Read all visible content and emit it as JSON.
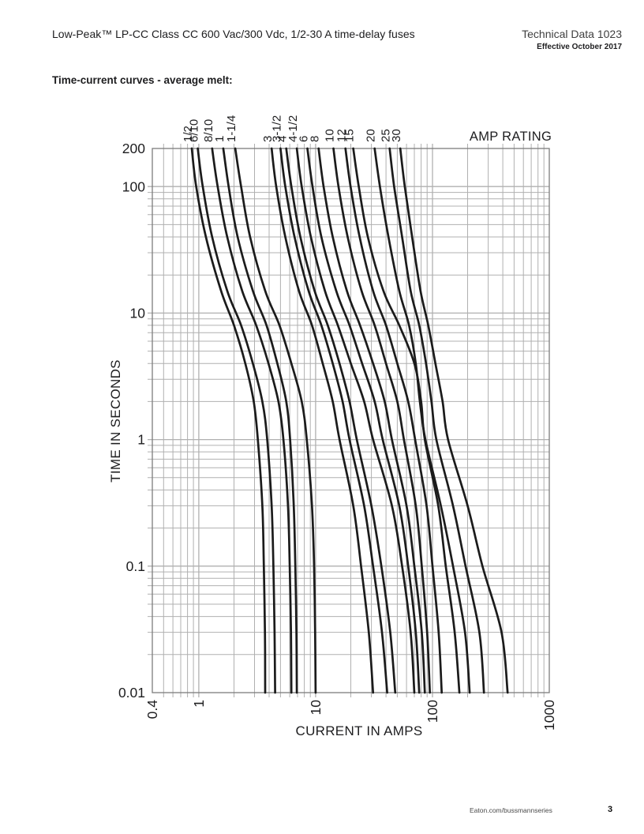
{
  "page": {
    "header": {
      "product_title": "Low-Peak™ LP-CC Class CC 600 Vac/300 Vdc, 1/2-30 A time-delay fuses",
      "doc_title": "Technical Data 1023",
      "effective_date": "Effective October 2017"
    },
    "section_title": "Time-current curves - average melt:",
    "footer": {
      "url": "Eaton.com/bussmannseries",
      "page_number": "3"
    }
  },
  "chart_data": {
    "type": "line",
    "title": "Time-current curves - average melt",
    "xlabel": "CURRENT IN AMPS",
    "ylabel": "TIME IN SECONDS",
    "legend_title": "AMP RATING",
    "x_scale": "log",
    "y_scale": "log",
    "xlim": [
      0.4,
      1000
    ],
    "ylim": [
      0.01,
      200
    ],
    "x_tick_values": [
      0.4,
      1,
      10,
      100,
      1000
    ],
    "x_tick_labels": [
      "0.4",
      "1",
      "10",
      "100",
      "1000"
    ],
    "y_tick_values": [
      200,
      100,
      10,
      1,
      0.1,
      0.01
    ],
    "y_tick_labels": [
      "200",
      "100",
      "10",
      "1",
      "0.1",
      "0.01"
    ],
    "grid": true,
    "legend_position": "top",
    "curve_color": "#1b1b1b",
    "grid_color": "#b0b0b0",
    "series": [
      {
        "label": "1/2",
        "points": [
          [
            0.87,
            200
          ],
          [
            0.95,
            100
          ],
          [
            1.15,
            40
          ],
          [
            1.55,
            15
          ],
          [
            2.0,
            8
          ],
          [
            2.5,
            4
          ],
          [
            2.95,
            2
          ],
          [
            3.2,
            1
          ],
          [
            3.5,
            0.3
          ],
          [
            3.6,
            0.1
          ],
          [
            3.68,
            0.03
          ],
          [
            3.7,
            0.01
          ]
        ]
      },
      {
        "label": "6/10",
        "points": [
          [
            0.98,
            200
          ],
          [
            1.08,
            100
          ],
          [
            1.3,
            40
          ],
          [
            1.75,
            15
          ],
          [
            2.3,
            8
          ],
          [
            2.9,
            4
          ],
          [
            3.5,
            2
          ],
          [
            3.85,
            1
          ],
          [
            4.2,
            0.3
          ],
          [
            4.35,
            0.1
          ],
          [
            4.45,
            0.03
          ],
          [
            4.5,
            0.01
          ]
        ]
      },
      {
        "label": "8/10",
        "points": [
          [
            1.3,
            200
          ],
          [
            1.45,
            100
          ],
          [
            1.75,
            40
          ],
          [
            2.35,
            15
          ],
          [
            3.1,
            8
          ],
          [
            3.95,
            4
          ],
          [
            4.8,
            2
          ],
          [
            5.3,
            1
          ],
          [
            5.8,
            0.3
          ],
          [
            6.0,
            0.1
          ],
          [
            6.15,
            0.03
          ],
          [
            6.2,
            0.01
          ]
        ]
      },
      {
        "label": "1",
        "points": [
          [
            1.62,
            200
          ],
          [
            1.8,
            100
          ],
          [
            2.15,
            40
          ],
          [
            2.9,
            15
          ],
          [
            3.8,
            8
          ],
          [
            4.7,
            4
          ],
          [
            5.6,
            2
          ],
          [
            6.05,
            1
          ],
          [
            6.5,
            0.3
          ],
          [
            6.7,
            0.1
          ],
          [
            6.85,
            0.03
          ],
          [
            6.9,
            0.01
          ]
        ]
      },
      {
        "label": "1-1/4",
        "points": [
          [
            2.05,
            200
          ],
          [
            2.3,
            100
          ],
          [
            2.75,
            40
          ],
          [
            3.7,
            15
          ],
          [
            4.9,
            8
          ],
          [
            6.2,
            4
          ],
          [
            7.6,
            2
          ],
          [
            8.4,
            1
          ],
          [
            9.3,
            0.3
          ],
          [
            9.7,
            0.1
          ],
          [
            9.9,
            0.03
          ],
          [
            10,
            0.01
          ]
        ]
      },
      {
        "label": "3",
        "points": [
          [
            4.2,
            200
          ],
          [
            4.6,
            100
          ],
          [
            5.5,
            40
          ],
          [
            7.2,
            15
          ],
          [
            9.3,
            8
          ],
          [
            11.5,
            4
          ],
          [
            14,
            2
          ],
          [
            16,
            1
          ],
          [
            21,
            0.3
          ],
          [
            24.5,
            0.1
          ],
          [
            28.5,
            0.03
          ],
          [
            31,
            0.01
          ]
        ]
      },
      {
        "label": "3-1/2",
        "points": [
          [
            5.0,
            200
          ],
          [
            5.5,
            100
          ],
          [
            6.6,
            40
          ],
          [
            8.7,
            15
          ],
          [
            11.2,
            8
          ],
          [
            14,
            4
          ],
          [
            17,
            2
          ],
          [
            19.5,
            1
          ],
          [
            26,
            0.3
          ],
          [
            31,
            0.1
          ],
          [
            37,
            0.03
          ],
          [
            41,
            0.01
          ]
        ]
      },
      {
        "label": "4",
        "points": [
          [
            5.6,
            200
          ],
          [
            6.2,
            100
          ],
          [
            7.4,
            40
          ],
          [
            9.8,
            15
          ],
          [
            12.7,
            8
          ],
          [
            16,
            4
          ],
          [
            19.5,
            2
          ],
          [
            22.5,
            1
          ],
          [
            30,
            0.3
          ],
          [
            36.5,
            0.1
          ],
          [
            43.5,
            0.03
          ],
          [
            48,
            0.01
          ]
        ]
      },
      {
        "label": "4-1/2",
        "points": [
          [
            6.9,
            200
          ],
          [
            7.6,
            100
          ],
          [
            9.1,
            40
          ],
          [
            12,
            15
          ],
          [
            15.5,
            8
          ],
          [
            20,
            4
          ],
          [
            26,
            2
          ],
          [
            31,
            1
          ],
          [
            45,
            0.3
          ],
          [
            55,
            0.1
          ],
          [
            65,
            0.03
          ],
          [
            70,
            0.01
          ]
        ]
      },
      {
        "label": "6",
        "points": [
          [
            8.5,
            200
          ],
          [
            9.4,
            100
          ],
          [
            11.2,
            40
          ],
          [
            15,
            15
          ],
          [
            19.5,
            8
          ],
          [
            25,
            4
          ],
          [
            32,
            2
          ],
          [
            37.5,
            1
          ],
          [
            52,
            0.3
          ],
          [
            62,
            0.1
          ],
          [
            72,
            0.03
          ],
          [
            77,
            0.01
          ]
        ]
      },
      {
        "label": "8",
        "points": [
          [
            10.6,
            200
          ],
          [
            11.7,
            100
          ],
          [
            14,
            40
          ],
          [
            18.5,
            15
          ],
          [
            24,
            8
          ],
          [
            31,
            4
          ],
          [
            39,
            2
          ],
          [
            45,
            1
          ],
          [
            60,
            0.3
          ],
          [
            70,
            0.1
          ],
          [
            81,
            0.03
          ],
          [
            86,
            0.01
          ]
        ]
      },
      {
        "label": "10",
        "points": [
          [
            14.2,
            200
          ],
          [
            15.7,
            100
          ],
          [
            18.8,
            40
          ],
          [
            24.7,
            15
          ],
          [
            32,
            8
          ],
          [
            40,
            4
          ],
          [
            50,
            2
          ],
          [
            57,
            1
          ],
          [
            72,
            0.3
          ],
          [
            81,
            0.1
          ],
          [
            90,
            0.03
          ],
          [
            95,
            0.01
          ]
        ]
      },
      {
        "label": "12",
        "points": [
          [
            18,
            200
          ],
          [
            19.9,
            100
          ],
          [
            23.8,
            40
          ],
          [
            31,
            15
          ],
          [
            40,
            8
          ],
          [
            50,
            4
          ],
          [
            62,
            2
          ],
          [
            71,
            1
          ],
          [
            89,
            0.3
          ],
          [
            100,
            0.1
          ],
          [
            113,
            0.03
          ],
          [
            120,
            0.01
          ]
        ]
      },
      {
        "label": "15",
        "points": [
          [
            21,
            200
          ],
          [
            23.4,
            100
          ],
          [
            28,
            40
          ],
          [
            38,
            15
          ],
          [
            52,
            8
          ],
          [
            70,
            4
          ],
          [
            80,
            2
          ],
          [
            86,
            1
          ],
          [
            112,
            0.3
          ],
          [
            130,
            0.1
          ],
          [
            155,
            0.03
          ],
          [
            170,
            0.01
          ]
        ]
      },
      {
        "label": "20",
        "points": [
          [
            32,
            200
          ],
          [
            35.5,
            100
          ],
          [
            42,
            40
          ],
          [
            52,
            15
          ],
          [
            63,
            8
          ],
          [
            72,
            4
          ],
          [
            78,
            2
          ],
          [
            87,
            1
          ],
          [
            118,
            0.3
          ],
          [
            150,
            0.1
          ],
          [
            190,
            0.03
          ],
          [
            208,
            0.01
          ]
        ]
      },
      {
        "label": "25",
        "points": [
          [
            43,
            200
          ],
          [
            47,
            100
          ],
          [
            55,
            40
          ],
          [
            65,
            15
          ],
          [
            77,
            8
          ],
          [
            88,
            4
          ],
          [
            98,
            2
          ],
          [
            108,
            1
          ],
          [
            150,
            0.3
          ],
          [
            192,
            0.1
          ],
          [
            252,
            0.03
          ],
          [
            276,
            0.01
          ]
        ]
      },
      {
        "label": "30",
        "points": [
          [
            53,
            200
          ],
          [
            58,
            100
          ],
          [
            67,
            40
          ],
          [
            79,
            15
          ],
          [
            92,
            8
          ],
          [
            106,
            4
          ],
          [
            122,
            2
          ],
          [
            136,
            1
          ],
          [
            200,
            0.3
          ],
          [
            268,
            0.1
          ],
          [
            390,
            0.03
          ],
          [
            440,
            0.01
          ]
        ]
      }
    ]
  }
}
